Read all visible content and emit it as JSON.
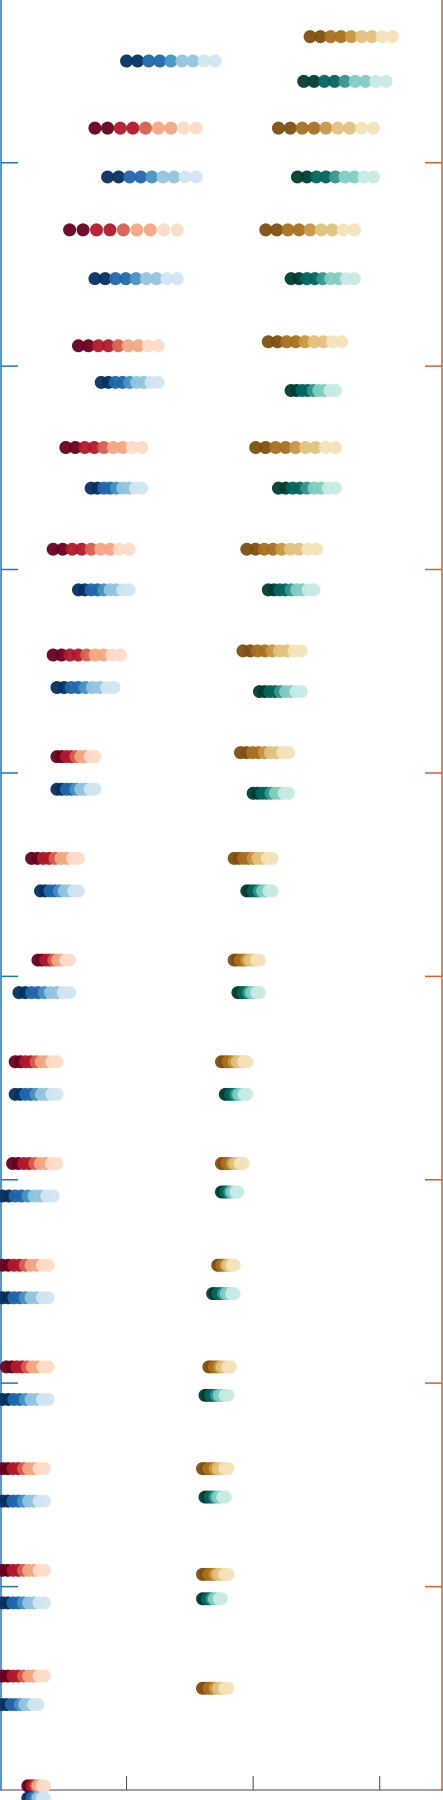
{
  "chart_data": {
    "type": "scatter",
    "title": "",
    "xlabel": "",
    "ylabel": "",
    "grid": false,
    "legend": "none",
    "xlim": [
      0,
      3.5
    ],
    "ylim": [
      0,
      8.8
    ],
    "xticks": [
      1,
      2,
      3
    ],
    "left_yticks": [
      1,
      2,
      3,
      4,
      5,
      6,
      7,
      8
    ],
    "right_yticks": [
      1,
      2,
      3,
      4,
      5,
      6,
      7,
      8
    ],
    "colors": {
      "left_axis": "#1f77c4",
      "right_axis": "#d4622a",
      "bottom_axis": "#444444",
      "rdbu_top": [
        "#67001f",
        "#b2182b",
        "#d6604d",
        "#f4a582",
        "#fddbc7"
      ],
      "rdbu_bottom": [
        "#053061",
        "#2166ac",
        "#4393c3",
        "#92c5de",
        "#d1e5f0"
      ],
      "brbg_top": [
        "#7f4f0f",
        "#a8701e",
        "#c9963f",
        "#e2c27c",
        "#f3e3b8"
      ],
      "brbg_bottom": [
        "#003c30",
        "#01665e",
        "#35978f",
        "#80cdc1",
        "#c7eae5"
      ]
    },
    "groups": [
      {
        "y": 8.5,
        "blue_x": [
          1.0,
          1.7
        ],
        "blue_dy": 0.0,
        "red_x": null,
        "teal_x": [
          2.4,
          3.05
        ],
        "teal_dy": -0.1,
        "gold_x": [
          2.45,
          3.1
        ],
        "gold_dy": 0.12
      },
      {
        "y": 8.05,
        "red_x": [
          0.75,
          1.55
        ],
        "red_dy": 0.12,
        "blue_x": [
          0.85,
          1.55
        ],
        "blue_dy": -0.12,
        "teal_x": [
          2.35,
          2.95
        ],
        "teal_dy": -0.12,
        "gold_x": [
          2.2,
          2.95
        ],
        "gold_dy": 0.12
      },
      {
        "y": 7.55,
        "red_x": [
          0.55,
          1.4
        ],
        "red_dy": 0.12,
        "blue_x": [
          0.75,
          1.4
        ],
        "blue_dy": -0.12,
        "teal_x": [
          2.3,
          2.8
        ],
        "teal_dy": -0.12,
        "gold_x": [
          2.1,
          2.8
        ],
        "gold_dy": 0.12
      },
      {
        "y": 7.0,
        "red_x": [
          0.62,
          1.25
        ],
        "red_dy": 0.1,
        "blue_x": [
          0.8,
          1.25
        ],
        "blue_dy": -0.08,
        "teal_x": [
          2.3,
          2.65
        ],
        "teal_dy": -0.12,
        "gold_x": [
          2.12,
          2.7
        ],
        "gold_dy": 0.12
      },
      {
        "y": 6.5,
        "red_x": [
          0.52,
          1.12
        ],
        "red_dy": 0.1,
        "blue_x": [
          0.72,
          1.12
        ],
        "blue_dy": -0.1,
        "teal_x": [
          2.2,
          2.65
        ],
        "teal_dy": -0.1,
        "gold_x": [
          2.02,
          2.65
        ],
        "gold_dy": 0.1
      },
      {
        "y": 6.0,
        "red_x": [
          0.42,
          1.02
        ],
        "red_dy": 0.1,
        "blue_x": [
          0.62,
          1.02
        ],
        "blue_dy": -0.1,
        "teal_x": [
          2.12,
          2.48
        ],
        "teal_dy": -0.1,
        "gold_x": [
          1.95,
          2.5
        ],
        "gold_dy": 0.1
      },
      {
        "y": 5.5,
        "red_x": [
          0.42,
          0.95
        ],
        "red_dy": 0.08,
        "blue_x": [
          0.45,
          0.9
        ],
        "blue_dy": -0.08,
        "teal_x": [
          2.05,
          2.38
        ],
        "teal_dy": -0.1,
        "gold_x": [
          1.92,
          2.38
        ],
        "gold_dy": 0.1
      },
      {
        "y": 5.0,
        "red_x": [
          0.45,
          0.75
        ],
        "red_dy": 0.08,
        "blue_x": [
          0.45,
          0.75
        ],
        "blue_dy": -0.08,
        "teal_x": [
          2.0,
          2.28
        ],
        "teal_dy": -0.1,
        "gold_x": [
          1.9,
          2.28
        ],
        "gold_dy": 0.1
      },
      {
        "y": 4.5,
        "red_x": [
          0.25,
          0.62
        ],
        "red_dy": 0.08,
        "blue_x": [
          0.32,
          0.62
        ],
        "blue_dy": -0.08,
        "teal_x": [
          1.95,
          2.15
        ],
        "teal_dy": -0.08,
        "gold_x": [
          1.85,
          2.15
        ],
        "gold_dy": 0.08
      },
      {
        "y": 4.0,
        "red_x": [
          0.3,
          0.55
        ],
        "red_dy": 0.08,
        "blue_x": [
          0.15,
          0.55
        ],
        "blue_dy": -0.08,
        "teal_x": [
          1.88,
          2.05
        ],
        "teal_dy": -0.08,
        "gold_x": [
          1.85,
          2.05
        ],
        "gold_dy": 0.08
      },
      {
        "y": 3.5,
        "red_x": [
          0.12,
          0.45
        ],
        "red_dy": 0.08,
        "blue_x": [
          0.12,
          0.45
        ],
        "blue_dy": -0.08,
        "teal_x": [
          1.78,
          1.95
        ],
        "teal_dy": -0.08,
        "gold_x": [
          1.75,
          1.95
        ],
        "gold_dy": 0.08
      },
      {
        "y": 3.0,
        "red_x": [
          0.1,
          0.45
        ],
        "red_dy": 0.08,
        "blue_x": [
          0.02,
          0.42
        ],
        "blue_dy": -0.08,
        "teal_x": [
          1.75,
          1.88
        ],
        "teal_dy": -0.06,
        "gold_x": [
          1.75,
          1.92
        ],
        "gold_dy": 0.08
      },
      {
        "y": 2.5,
        "red_x": [
          0.02,
          0.38
        ],
        "red_dy": 0.08,
        "blue_x": [
          0.02,
          0.38
        ],
        "blue_dy": -0.08,
        "teal_x": [
          1.68,
          1.85
        ],
        "teal_dy": -0.06,
        "gold_x": [
          1.72,
          1.85
        ],
        "gold_dy": 0.08
      },
      {
        "y": 2.0,
        "red_x": [
          0.05,
          0.38
        ],
        "red_dy": 0.08,
        "blue_x": [
          0.02,
          0.38
        ],
        "blue_dy": -0.08,
        "teal_x": [
          1.62,
          1.8
        ],
        "teal_dy": -0.06,
        "gold_x": [
          1.65,
          1.82
        ],
        "gold_dy": 0.08
      },
      {
        "y": 1.5,
        "red_x": [
          0.02,
          0.35
        ],
        "red_dy": 0.08,
        "blue_x": [
          0.02,
          0.35
        ],
        "blue_dy": -0.08,
        "teal_x": [
          1.62,
          1.78
        ],
        "teal_dy": -0.06,
        "gold_x": [
          1.6,
          1.8
        ],
        "gold_dy": 0.08
      },
      {
        "y": 1.0,
        "red_x": [
          0.02,
          0.35
        ],
        "red_dy": 0.08,
        "blue_x": [
          0.02,
          0.35
        ],
        "blue_dy": -0.08,
        "teal_x": [
          1.6,
          1.75
        ],
        "teal_dy": -0.06,
        "gold_x": [
          1.6,
          1.8
        ],
        "gold_dy": 0.06
      },
      {
        "y": 0.5,
        "red_x": [
          0.02,
          0.35
        ],
        "red_dy": 0.06,
        "blue_x": [
          0.02,
          0.3
        ],
        "blue_dy": -0.08,
        "teal_x": null,
        "gold_x": [
          1.6,
          1.8
        ],
        "gold_dy": 0.0
      },
      {
        "y": 0.0,
        "red_x": [
          0.22,
          0.35
        ],
        "red_dy": 0.02,
        "blue_x": [
          0.22,
          0.35
        ],
        "blue_dy": -0.04,
        "teal_x": null,
        "gold_x": null
      }
    ]
  }
}
